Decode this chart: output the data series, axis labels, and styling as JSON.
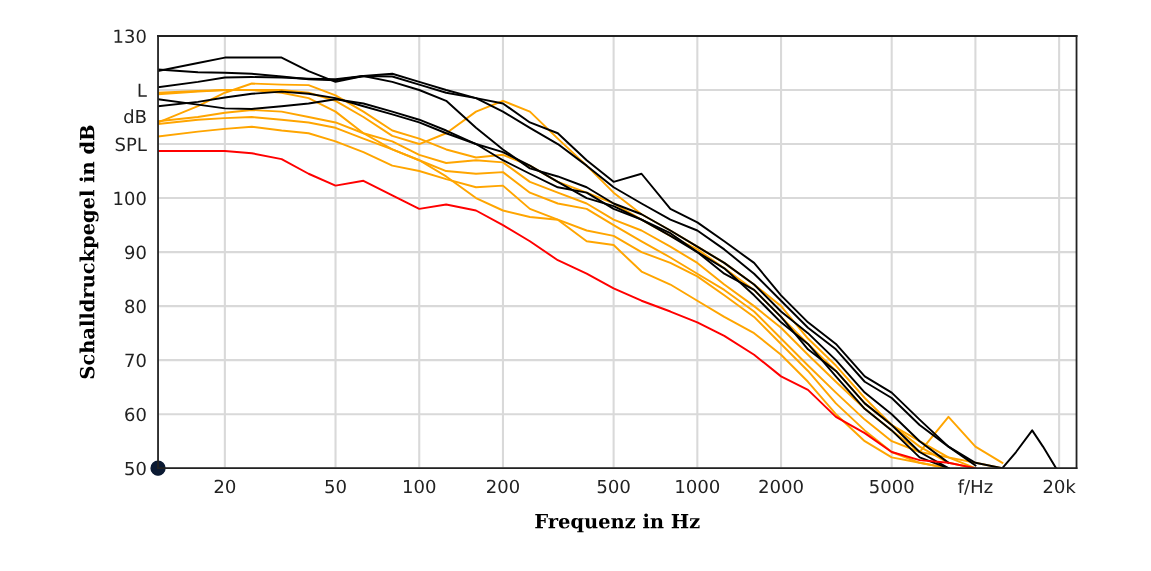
{
  "chart_data": {
    "type": "line",
    "xlabel": "Frequenz in Hz",
    "ylabel": "Schalldruckpegel in dB",
    "annotations": [
      "dB"
    ],
    "log": "x",
    "grid": true,
    "legend": false,
    "marker": "none",
    "line_style": "solid",
    "xlim": [
      11.5,
      23100
    ],
    "ylim": [
      50,
      130
    ],
    "xticks": [
      20,
      50,
      100,
      200,
      500,
      1000,
      2000,
      5000,
      {
        "value": 10000,
        "label": "f/Hz"
      },
      {
        "value": 20000,
        "label": "20k"
      }
    ],
    "yticks": [
      50,
      60,
      70,
      80,
      90,
      100,
      {
        "value": 110,
        "label": "SPL"
      },
      {
        "value": 120,
        "label": "L"
      },
      130
    ],
    "x": [
      11.5,
      16,
      20,
      25,
      32,
      40,
      50,
      63,
      80,
      100,
      125,
      160,
      200,
      250,
      315,
      400,
      500,
      630,
      800,
      1000,
      1250,
      1600,
      2000,
      2500,
      3150,
      4000,
      5000,
      6300,
      8000,
      10000,
      12500,
      14000,
      16000,
      17500,
      19500
    ],
    "series": [
      {
        "color": "#ffa500",
        "values": [
          119.5,
          119.8,
          120,
          120,
          120,
          119.5,
          118,
          115,
          111.5,
          110,
          112,
          116,
          118,
          116,
          111,
          106,
          101,
          97,
          94,
          91,
          88,
          84,
          80,
          74,
          69,
          63,
          58,
          54,
          51,
          50,
          null,
          null,
          null,
          null,
          null
        ]
      },
      {
        "color": "#ffa500",
        "values": [
          114,
          117,
          119.5,
          121.2,
          121,
          120.9,
          119,
          116,
          112.5,
          111,
          109,
          107.5,
          108,
          106,
          103,
          101,
          99,
          96,
          93,
          90.5,
          87,
          83,
          78,
          73,
          68,
          62,
          58,
          55,
          52,
          51,
          50,
          null,
          null,
          null,
          null
        ]
      },
      {
        "color": "#ffa500",
        "values": [
          114.2,
          115,
          115.8,
          116.3,
          116,
          115,
          114,
          112,
          110.5,
          108,
          106.5,
          107,
          106.6,
          103,
          101,
          99,
          96,
          94,
          91,
          88,
          84,
          80,
          76,
          71,
          66,
          61,
          57,
          53,
          59.5,
          54,
          51,
          null,
          null,
          null,
          null
        ]
      },
      {
        "color": "#ffa500",
        "values": [
          113.7,
          114.5,
          114.8,
          115,
          114.5,
          114,
          113,
          111,
          109,
          107,
          105,
          104.5,
          104.8,
          101,
          99,
          98,
          95,
          92,
          89,
          86,
          83,
          79,
          74,
          69,
          64,
          59,
          55,
          53,
          52,
          50,
          null,
          null,
          null,
          null,
          null
        ]
      },
      {
        "color": "#ffa500",
        "values": [
          111.4,
          112.3,
          112.8,
          113.2,
          112.5,
          112,
          110.5,
          108.5,
          106,
          105,
          103.5,
          102,
          102.3,
          98,
          96,
          94,
          93,
          90,
          88,
          85.5,
          82,
          78,
          73,
          68,
          62,
          57,
          53,
          51,
          50,
          null,
          null,
          null,
          null,
          null,
          null
        ]
      },
      {
        "color": "#ffa500",
        "values": [
          119.2,
          119.7,
          120,
          120,
          119.5,
          118.5,
          116,
          112,
          109,
          107,
          104,
          100,
          97.7,
          96.5,
          96,
          92,
          91.3,
          86.4,
          84,
          81,
          78,
          75,
          71,
          66,
          60,
          55,
          52,
          51,
          50,
          null,
          null,
          null,
          null,
          null,
          null
        ]
      },
      {
        "color": "#000000",
        "values": [
          123.5,
          125,
          126,
          126,
          126,
          123.5,
          121.5,
          122.6,
          123,
          121.5,
          120,
          118.5,
          116,
          113,
          110,
          106,
          102,
          99,
          96,
          94,
          90.5,
          86,
          81,
          76,
          72,
          66,
          63,
          58,
          54,
          51,
          50,
          53,
          57,
          54,
          50
        ]
      },
      {
        "color": "#000000",
        "values": [
          123.8,
          123.3,
          123.2,
          123,
          122.5,
          122,
          121.8,
          122.6,
          121.5,
          120,
          118,
          113,
          109,
          105.5,
          104,
          102,
          99,
          97,
          94,
          91,
          88,
          84,
          79,
          75,
          70,
          64,
          60,
          55,
          51,
          null,
          null,
          null,
          null,
          null,
          null
        ]
      },
      {
        "color": "#000000",
        "values": [
          120.5,
          121.5,
          122.3,
          122.4,
          122.3,
          122.1,
          122,
          122.6,
          122.5,
          121,
          119.5,
          118.5,
          117.5,
          114,
          112,
          107,
          103,
          104.5,
          98,
          95.5,
          92,
          88,
          82,
          77,
          73,
          67,
          64,
          59,
          54,
          50.5,
          null,
          null,
          null,
          null,
          null
        ]
      },
      {
        "color": "#000000",
        "values": [
          118.3,
          117.3,
          116.6,
          116.5,
          117,
          117.5,
          118.3,
          117.5,
          116,
          114.5,
          112.5,
          110,
          107,
          104.5,
          102,
          101,
          98,
          96,
          93.5,
          90,
          87,
          82,
          77,
          73,
          67,
          61,
          57,
          52,
          50,
          null,
          null,
          null,
          null,
          null,
          null
        ]
      },
      {
        "color": "#000000",
        "values": [
          117,
          117.8,
          118.6,
          119.3,
          119.7,
          119.3,
          118.5,
          117,
          115.5,
          114,
          112,
          110,
          108.5,
          106,
          103,
          100,
          98.5,
          96,
          93,
          90,
          86,
          83,
          78,
          72,
          68,
          62,
          58,
          53,
          50,
          null,
          null,
          null,
          null,
          null,
          null
        ]
      },
      {
        "color": "#ff0000",
        "values": [
          108.7,
          108.7,
          108.7,
          108.3,
          107.2,
          104.5,
          102.3,
          103.2,
          100.5,
          98,
          98.8,
          97.7,
          95,
          92,
          88.5,
          86,
          83.3,
          81,
          79,
          77,
          74.5,
          71,
          67,
          64.5,
          59.5,
          56.5,
          53,
          51.5,
          51,
          50,
          null,
          null,
          null,
          null,
          null
        ]
      }
    ]
  }
}
